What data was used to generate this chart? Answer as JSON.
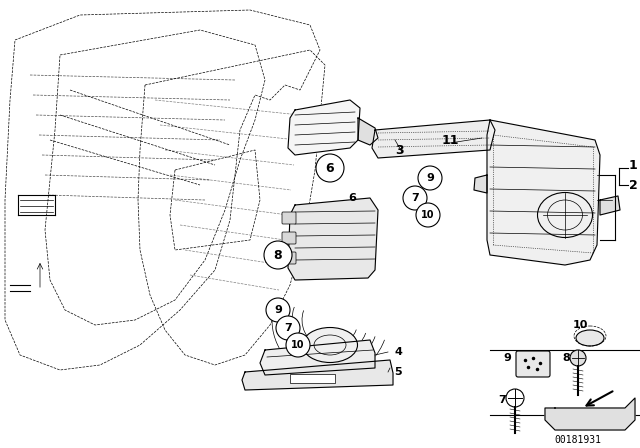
{
  "background_color": "#ffffff",
  "fig_width": 6.4,
  "fig_height": 4.48,
  "dpi": 100,
  "watermark": "00181931",
  "lw_main": 0.8,
  "lw_thin": 0.5,
  "black": "#000000"
}
